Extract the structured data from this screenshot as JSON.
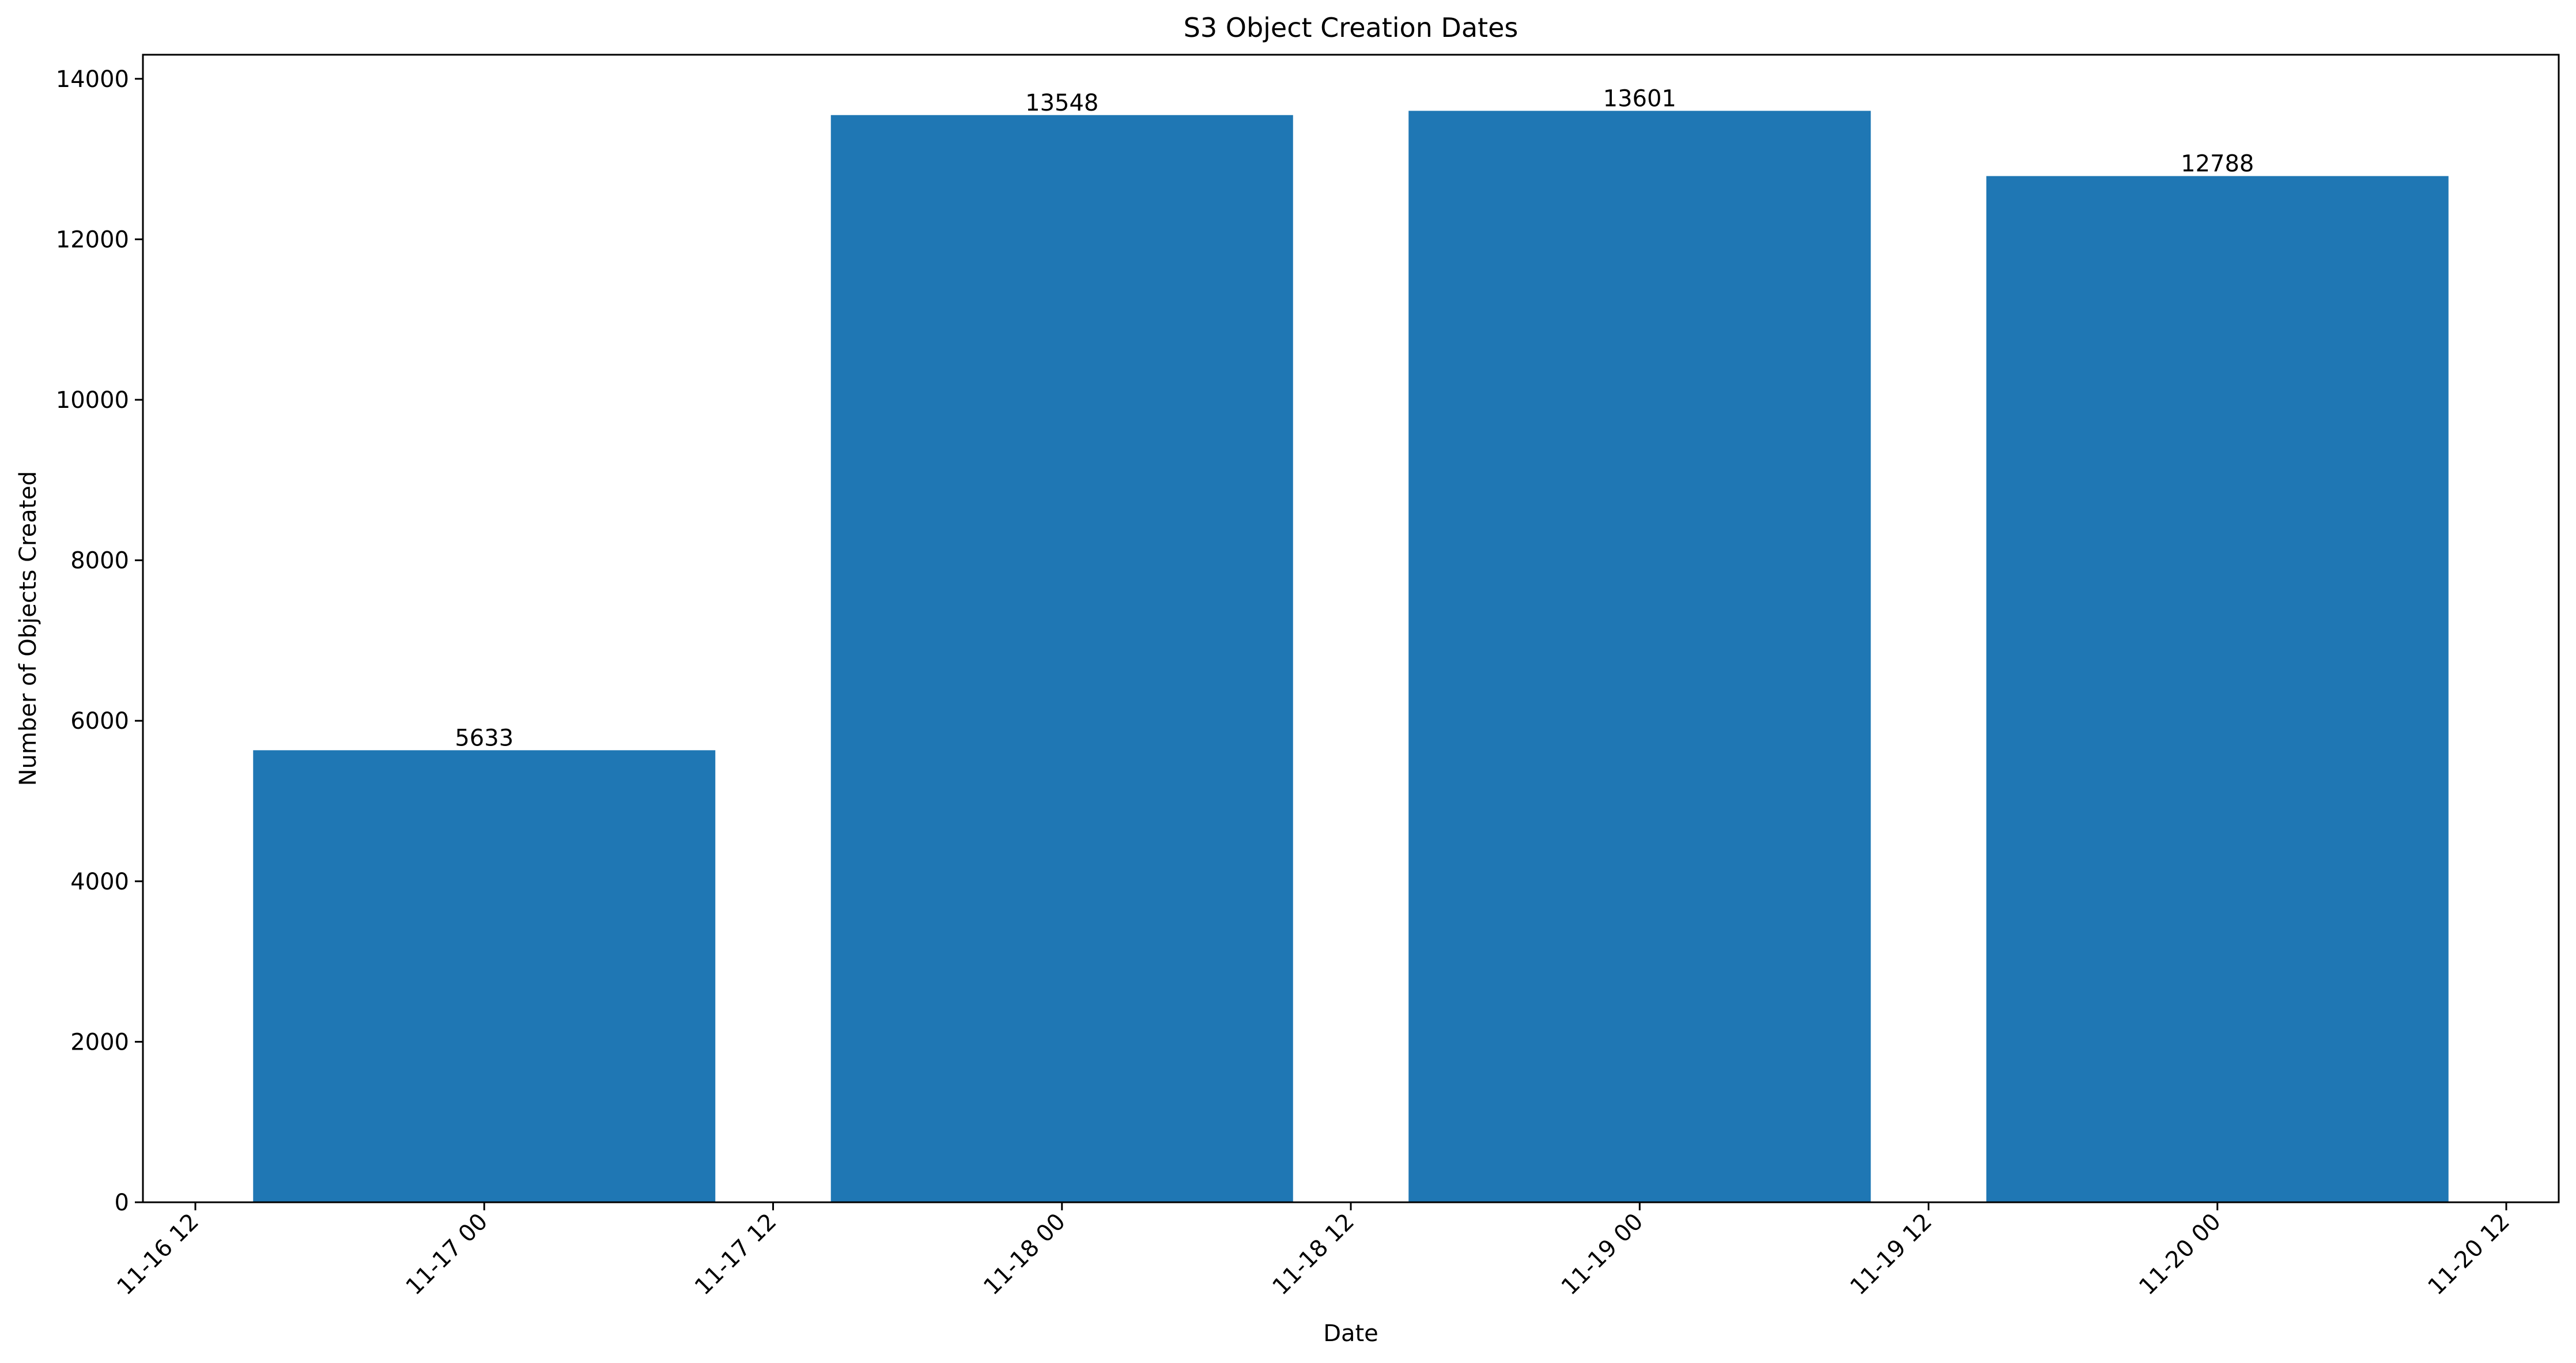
{
  "chart_data": {
    "type": "bar",
    "title": "S3 Object Creation Dates",
    "xlabel": "Date",
    "ylabel": "Number of Objects Created",
    "categories": [
      "2024-11-17",
      "2024-11-18",
      "2024-11-19",
      "2024-11-20"
    ],
    "values": [
      5633,
      13548,
      13601,
      12788
    ],
    "data_labels": [
      "5633",
      "13548",
      "13601",
      "12788"
    ],
    "x_ticks": [
      "11-16 12",
      "11-17 00",
      "11-17 12",
      "11-18 00",
      "11-18 12",
      "11-19 00",
      "11-19 12",
      "11-20 00",
      "11-20 12"
    ],
    "y_ticks": [
      "0",
      "2000",
      "4000",
      "6000",
      "8000",
      "10000",
      "12000",
      "14000"
    ],
    "ylim": [
      0,
      14300
    ],
    "bar_color": "#1f77b4",
    "grid": false,
    "legend": "none"
  }
}
